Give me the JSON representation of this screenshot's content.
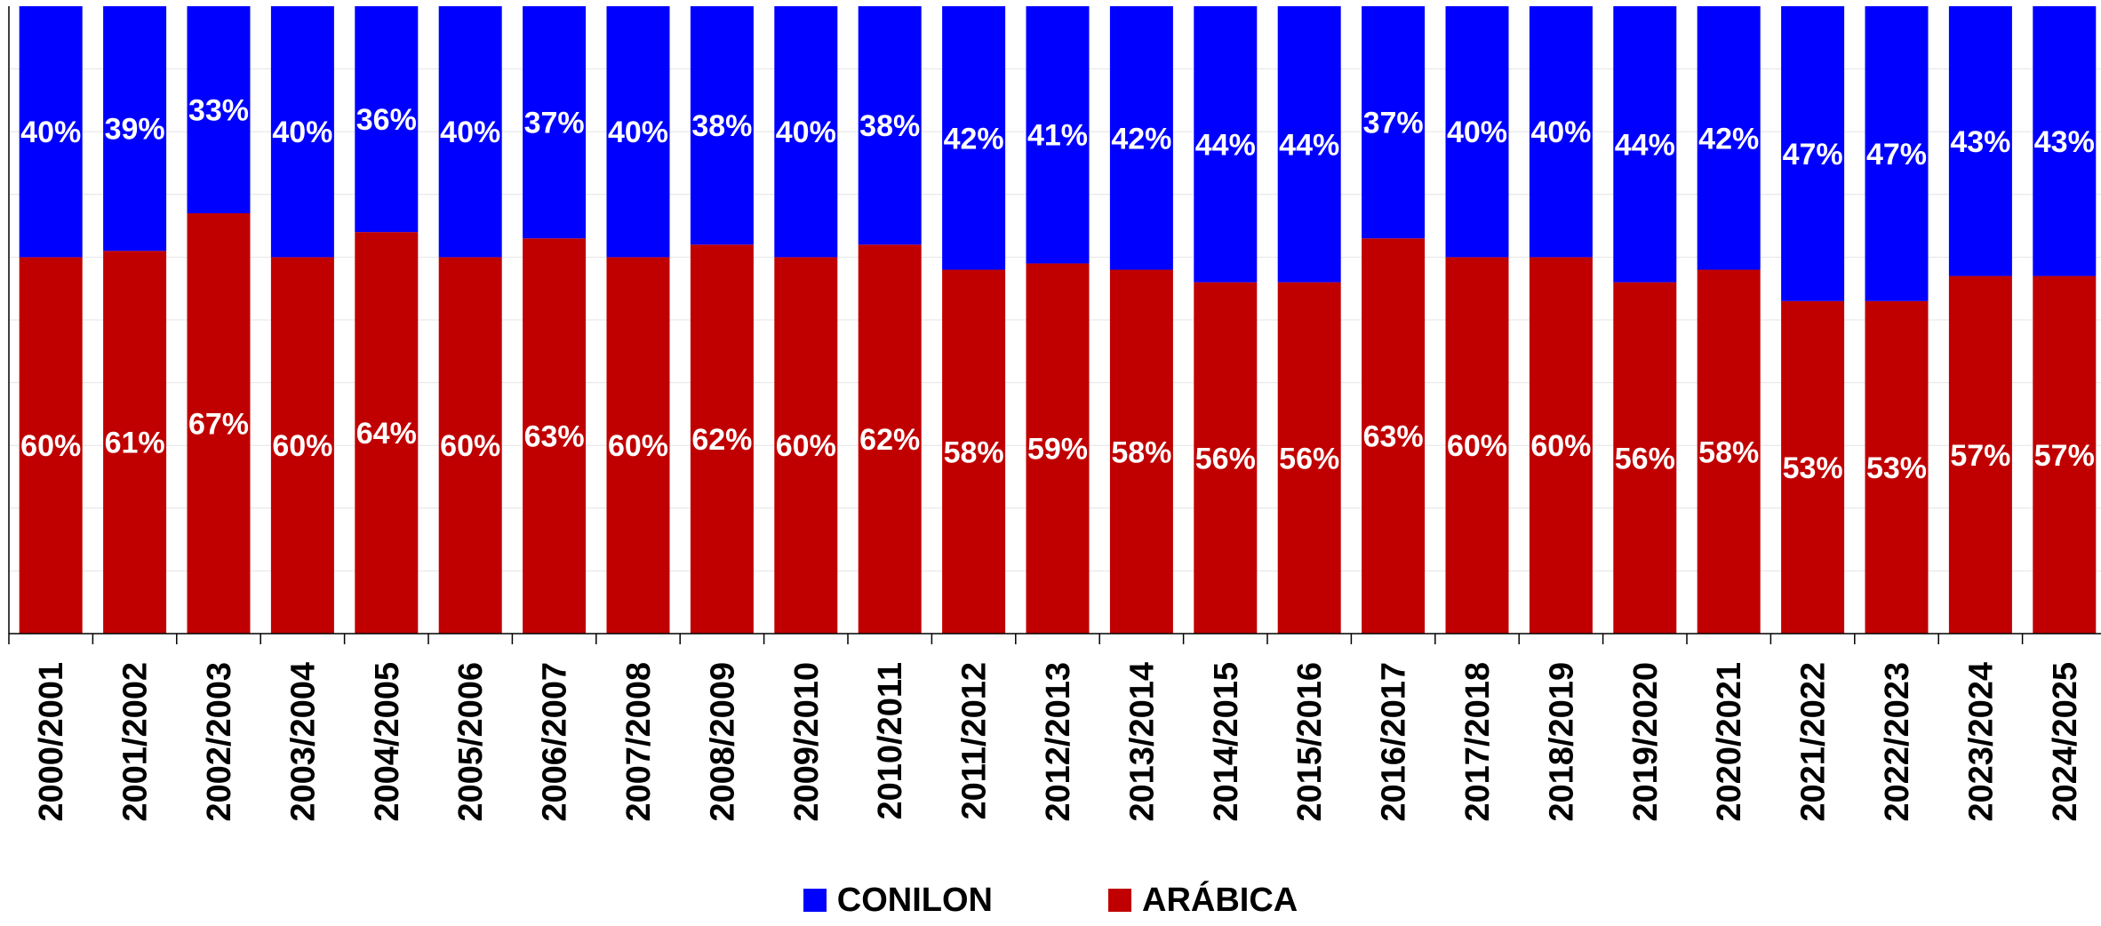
{
  "chart_data": {
    "type": "bar",
    "stacked": true,
    "percent": true,
    "categories": [
      "2000/2001",
      "2001/2002",
      "2002/2003",
      "2003/2004",
      "2004/2005",
      "2005/2006",
      "2006/2007",
      "2007/2008",
      "2008/2009",
      "2009/2010",
      "2010/2011",
      "2011/2012",
      "2012/2013",
      "2013/2014",
      "2014/2015",
      "2015/2016",
      "2016/2017",
      "2017/2018",
      "2018/2019",
      "2019/2020",
      "2020/2021",
      "2021/2022",
      "2022/2023",
      "2023/2024",
      "2024/2025"
    ],
    "series": [
      {
        "name": "ARÁBICA",
        "color": "#c00000",
        "values": [
          60,
          61,
          67,
          60,
          64,
          60,
          63,
          60,
          62,
          60,
          62,
          58,
          59,
          58,
          56,
          56,
          63,
          60,
          60,
          56,
          58,
          53,
          53,
          57,
          57
        ]
      },
      {
        "name": "CONILON",
        "color": "#0000ff",
        "values": [
          40,
          39,
          33,
          40,
          36,
          40,
          37,
          40,
          38,
          40,
          38,
          42,
          41,
          42,
          44,
          44,
          37,
          40,
          40,
          44,
          42,
          47,
          47,
          43,
          43
        ]
      }
    ],
    "data_labels": true,
    "value_suffix": "%",
    "ylim": [
      0,
      100
    ],
    "grid": true,
    "legend_position": "bottom",
    "legend": [
      {
        "name": "CONILON",
        "color": "#0000ff"
      },
      {
        "name": "ARÁBICA",
        "color": "#c00000"
      }
    ]
  }
}
